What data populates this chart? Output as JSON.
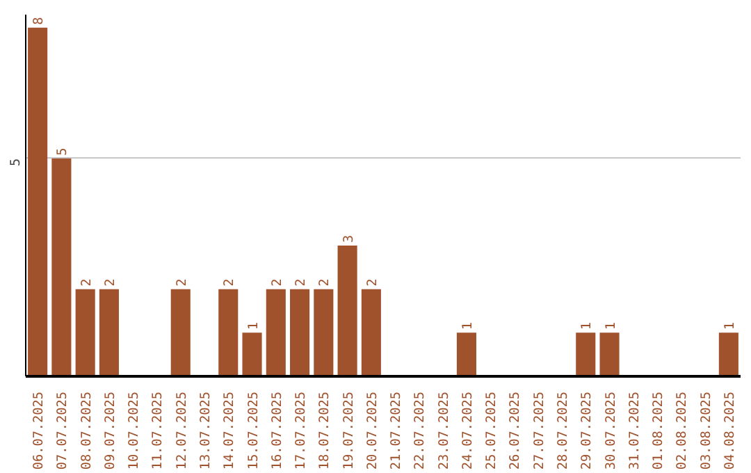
{
  "chart_data": {
    "type": "bar",
    "categories": [
      "06.07.2025",
      "07.07.2025",
      "08.07.2025",
      "09.07.2025",
      "10.07.2025",
      "11.07.2025",
      "12.07.2025",
      "13.07.2025",
      "14.07.2025",
      "15.07.2025",
      "16.07.2025",
      "17.07.2025",
      "18.07.2025",
      "19.07.2025",
      "20.07.2025",
      "21.07.2025",
      "22.07.2025",
      "23.07.2025",
      "24.07.2025",
      "25.07.2025",
      "26.07.2025",
      "27.07.2025",
      "28.07.2025",
      "29.07.2025",
      "30.07.2025",
      "31.07.2025",
      "01.08.2025",
      "02.08.2025",
      "03.08.2025",
      "04.08.2025"
    ],
    "values": [
      8,
      5,
      2,
      2,
      0,
      0,
      2,
      0,
      2,
      1,
      2,
      2,
      2,
      3,
      2,
      0,
      0,
      0,
      1,
      0,
      0,
      0,
      0,
      1,
      1,
      0,
      0,
      0,
      0,
      1
    ],
    "value_labels": [
      "8",
      "5",
      "2",
      "2",
      null,
      null,
      "2",
      null,
      "2",
      "1",
      "2",
      "2",
      "2",
      "3",
      "2",
      null,
      null,
      null,
      "1",
      null,
      null,
      null,
      null,
      "1",
      "1",
      null,
      null,
      null,
      null,
      "1"
    ],
    "color": "#a0522d",
    "ylim": [
      0,
      8.3
    ],
    "yticks": [
      5
    ],
    "grid": "y"
  }
}
